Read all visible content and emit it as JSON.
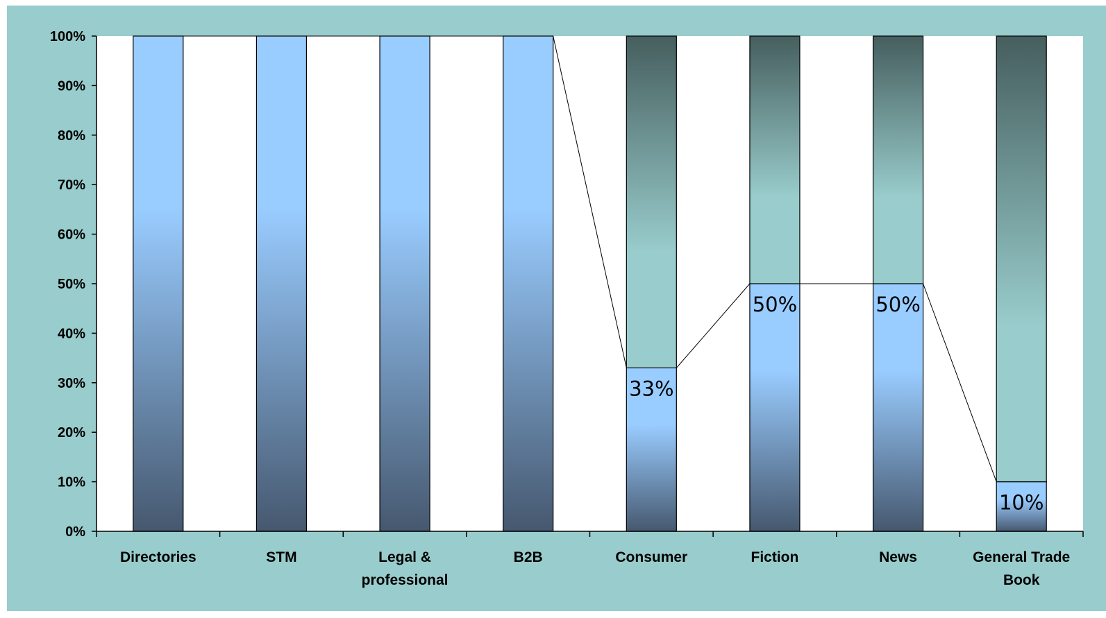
{
  "chart_data": {
    "type": "bar",
    "stacked": true,
    "percent_stacked": true,
    "categories": [
      [
        "Directories"
      ],
      [
        "STM"
      ],
      [
        "Legal &",
        "professional"
      ],
      [
        "B2B"
      ],
      [
        "Consumer"
      ],
      [
        "Fiction"
      ],
      [
        "News"
      ],
      [
        "General Trade",
        "Book"
      ]
    ],
    "series": [
      {
        "values": [
          100,
          100,
          100,
          100,
          33,
          50,
          50,
          10
        ],
        "color": "#99ccff"
      },
      {
        "values": [
          0,
          0,
          0,
          0,
          67,
          50,
          50,
          90
        ],
        "color": "#99cccc"
      }
    ],
    "data_labels": [
      "",
      "",
      "",
      "",
      "33%",
      "50%",
      "50%",
      "10%"
    ],
    "yticks": [
      "0%",
      "10%",
      "20%",
      "30%",
      "40%",
      "50%",
      "60%",
      "70%",
      "80%",
      "90%",
      "100%"
    ],
    "ylim": [
      0,
      100
    ],
    "series_lines": true,
    "grid": false,
    "legend": "none",
    "colors": {
      "background": "#99cccc",
      "plot_area": "#ffffff",
      "bar_dark": "#46586f",
      "bar_light": "#99ccff",
      "teal_dark": "#465e5e",
      "teal_light": "#99cccc"
    }
  }
}
